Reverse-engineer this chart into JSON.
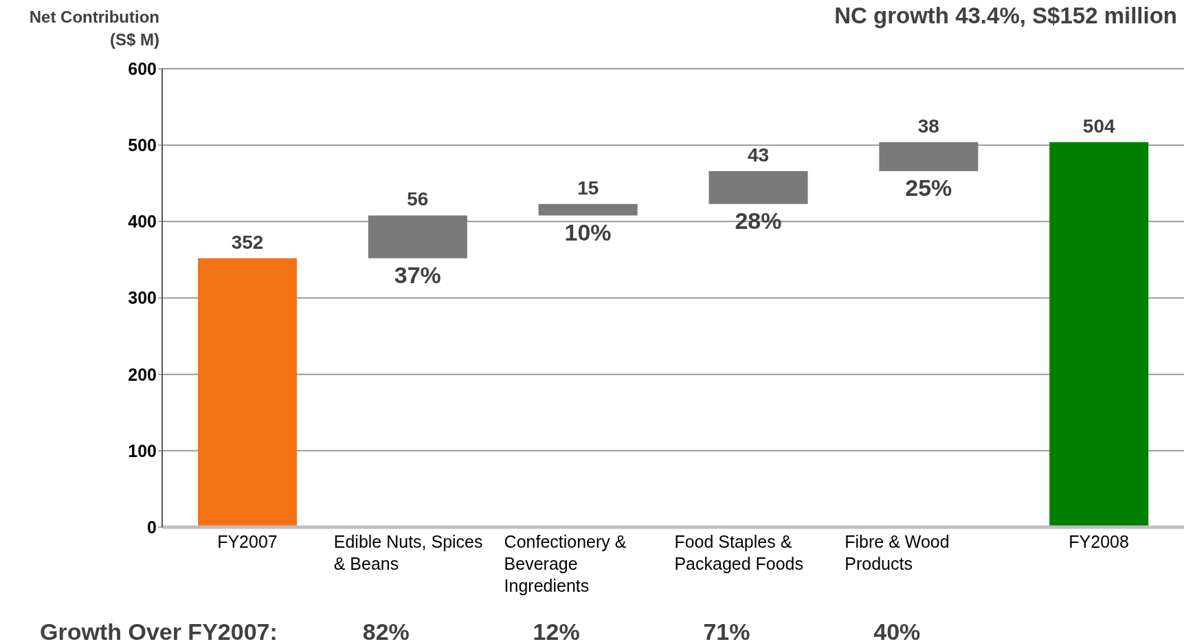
{
  "chart_data": {
    "type": "bar",
    "title": "NC growth 43.4%, S$152 million",
    "ylabel": "Net Contribution (S$ M)",
    "categories": [
      "FY2007",
      "Edible Nuts, Spices & Beans",
      "Confectionery & Beverage Ingredients",
      "Food Staples & Packaged Foods",
      "Fibre & Wood Products",
      "FY2008"
    ],
    "values": [
      352,
      56,
      15,
      43,
      38,
      504
    ],
    "base": [
      0,
      352,
      408,
      423,
      466,
      0
    ],
    "colors": [
      "#f47216",
      "#7a7a7a",
      "#7a7a7a",
      "#7a7a7a",
      "#7a7a7a",
      "#008000"
    ],
    "data_labels": true,
    "ylim": [
      0,
      600
    ],
    "yticks": [
      0,
      100,
      200,
      300,
      400,
      500,
      600
    ],
    "grid": "y",
    "annotations": [
      "37%",
      "10%",
      "28%",
      "25%",
      "Growth Over FY2007:",
      "82%",
      "12%",
      "71%",
      "40%"
    ]
  }
}
